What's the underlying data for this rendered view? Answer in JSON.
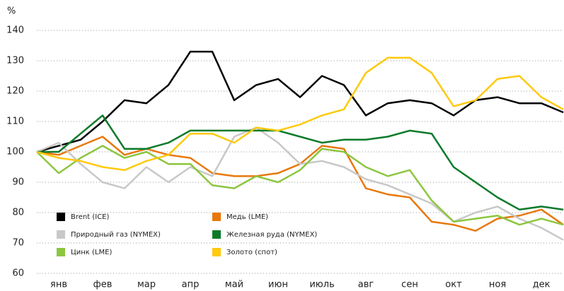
{
  "chart_data": {
    "type": "line",
    "y_label": "%",
    "x": [
      0,
      0.5,
      1,
      1.5,
      2,
      2.5,
      3,
      3.5,
      4,
      4.5,
      5,
      5.5,
      6,
      6.5,
      7,
      7.5,
      8,
      8.5,
      9,
      9.5,
      10,
      10.5,
      11,
      11.5,
      12
    ],
    "xlim": [
      0,
      12
    ],
    "xticks": [
      {
        "value": 0.5,
        "label": "янв"
      },
      {
        "value": 1.5,
        "label": "фев"
      },
      {
        "value": 2.5,
        "label": "мар"
      },
      {
        "value": 3.5,
        "label": "апр"
      },
      {
        "value": 4.5,
        "label": "май"
      },
      {
        "value": 5.5,
        "label": "июн"
      },
      {
        "value": 6.5,
        "label": "июль"
      },
      {
        "value": 7.5,
        "label": "авг"
      },
      {
        "value": 8.5,
        "label": "сен"
      },
      {
        "value": 9.5,
        "label": "окт"
      },
      {
        "value": 10.5,
        "label": "ноя"
      },
      {
        "value": 11.5,
        "label": "дек"
      }
    ],
    "ylim": [
      60,
      140
    ],
    "yticks": [
      60,
      70,
      80,
      90,
      100,
      110,
      120,
      130,
      140
    ],
    "grid": true,
    "series": [
      {
        "name": "Brent (ICE)",
        "color": "#000000",
        "values": [
          100,
          102,
          104,
          110,
          117,
          116,
          122,
          133,
          133,
          117,
          122,
          124,
          118,
          125,
          122,
          112,
          116,
          117,
          116,
          112,
          117,
          118,
          116,
          116,
          113
        ]
      },
      {
        "name": "Медь (LME)",
        "color": "#e8780c",
        "values": [
          100,
          99,
          102,
          105,
          99,
          101,
          99,
          98,
          93,
          92,
          92,
          93,
          96,
          102,
          101,
          88,
          86,
          85,
          77,
          76,
          74,
          78,
          79,
          81,
          76
        ]
      },
      {
        "name": "Природный газ (NYMEX)",
        "color": "#c8c8c8",
        "values": [
          100,
          103,
          96,
          90,
          88,
          95,
          90,
          95,
          92,
          105,
          108,
          103,
          96,
          97,
          95,
          91,
          89,
          86,
          83,
          77,
          80,
          82,
          78,
          75,
          71
        ]
      },
      {
        "name": "Железная руда (NYMEX)",
        "color": "#0a7a2a",
        "values": [
          100,
          100,
          106,
          112,
          101,
          101,
          103,
          107,
          107,
          107,
          107,
          107,
          105,
          103,
          104,
          104,
          105,
          107,
          106,
          95,
          90,
          85,
          81,
          82,
          81
        ]
      },
      {
        "name": "Цинк (LME)",
        "color": "#8cc63f",
        "values": [
          100,
          93,
          98,
          102,
          98,
          100,
          96,
          96,
          89,
          88,
          92,
          90,
          94,
          101,
          100,
          95,
          92,
          94,
          84,
          77,
          78,
          79,
          76,
          78,
          76
        ]
      },
      {
        "name": "Золото (спот)",
        "color": "#ffc90e",
        "values": [
          100,
          98,
          97,
          95,
          94,
          97,
          99,
          106,
          106,
          103,
          108,
          107,
          109,
          112,
          114,
          126,
          131,
          131,
          126,
          115,
          117,
          124,
          125,
          118,
          114
        ]
      }
    ]
  }
}
